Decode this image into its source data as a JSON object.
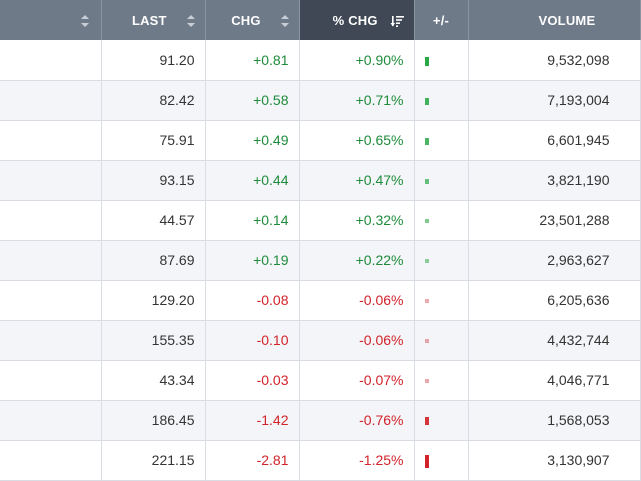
{
  "header": {
    "columns": [
      {
        "key": "name",
        "label": "",
        "sort": "both"
      },
      {
        "key": "last",
        "label": "LAST",
        "sort": "both"
      },
      {
        "key": "chg",
        "label": "CHG",
        "sort": "both"
      },
      {
        "key": "pct_chg",
        "label": "% CHG",
        "sort": "desc",
        "active": true
      },
      {
        "key": "bar",
        "label": "+/-",
        "sort": "none"
      },
      {
        "key": "volume",
        "label": "VOLUME",
        "sort": "none"
      }
    ]
  },
  "colors": {
    "positive": "#1f8b3a",
    "negative": "#d2232a",
    "header_bg": "#6f7a89",
    "header_active_bg": "#3f4854"
  },
  "rows": [
    {
      "last": "91.20",
      "chg": "+0.81",
      "pct": "+0.90%",
      "dir": "up",
      "bar_level": 0.9,
      "volume": "9,532,098"
    },
    {
      "last": "82.42",
      "chg": "+0.58",
      "pct": "+0.71%",
      "dir": "up",
      "bar_level": 0.71,
      "volume": "7,193,004"
    },
    {
      "last": "75.91",
      "chg": "+0.49",
      "pct": "+0.65%",
      "dir": "up",
      "bar_level": 0.65,
      "volume": "6,601,945"
    },
    {
      "last": "93.15",
      "chg": "+0.44",
      "pct": "+0.47%",
      "dir": "up",
      "bar_level": 0.47,
      "volume": "3,821,190"
    },
    {
      "last": "44.57",
      "chg": "+0.14",
      "pct": "+0.32%",
      "dir": "up",
      "bar_level": 0.32,
      "volume": "23,501,288"
    },
    {
      "last": "87.69",
      "chg": "+0.19",
      "pct": "+0.22%",
      "dir": "up",
      "bar_level": 0.22,
      "volume": "2,963,627"
    },
    {
      "last": "129.20",
      "chg": "-0.08",
      "pct": "-0.06%",
      "dir": "down",
      "bar_level": 0.06,
      "volume": "6,205,636"
    },
    {
      "last": "155.35",
      "chg": "-0.10",
      "pct": "-0.06%",
      "dir": "down",
      "bar_level": 0.06,
      "volume": "4,432,744"
    },
    {
      "last": "43.34",
      "chg": "-0.03",
      "pct": "-0.07%",
      "dir": "down",
      "bar_level": 0.07,
      "volume": "4,046,771"
    },
    {
      "last": "186.45",
      "chg": "-1.42",
      "pct": "-0.76%",
      "dir": "down",
      "bar_level": 0.76,
      "volume": "1,568,053"
    },
    {
      "last": "221.15",
      "chg": "-2.81",
      "pct": "-1.25%",
      "dir": "down",
      "bar_level": 1.25,
      "volume": "3,130,907"
    }
  ]
}
